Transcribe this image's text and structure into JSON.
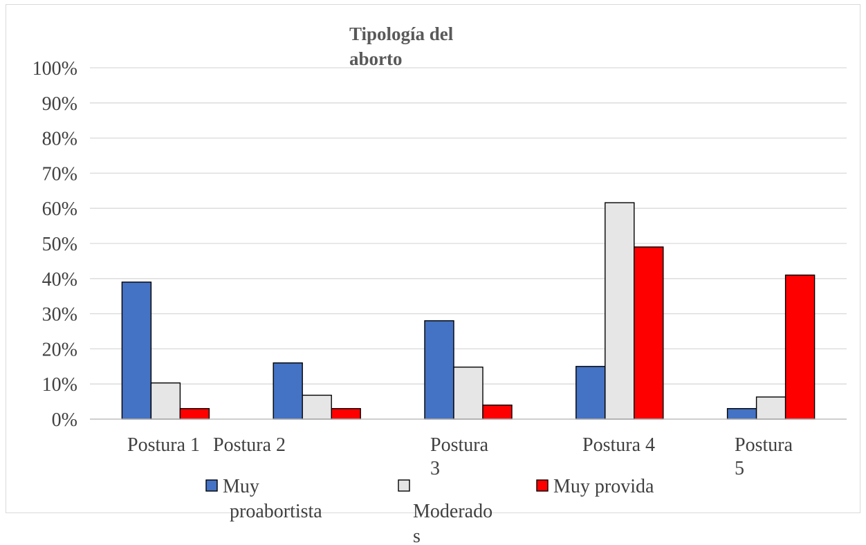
{
  "chart_data": {
    "type": "bar",
    "title_lines": [
      "Tipología del",
      "aborto"
    ],
    "categories": [
      [
        "Postura 1"
      ],
      [
        "Postura 2"
      ],
      [
        "Postura",
        "3"
      ],
      [
        "Postura 4"
      ],
      [
        "Postura",
        "5"
      ]
    ],
    "series": [
      {
        "name_lines": [
          "Muy",
          "proabortista"
        ],
        "color": "#4472c4",
        "values": [
          39,
          16,
          28,
          15,
          3
        ]
      },
      {
        "name_lines": [
          "",
          "Moderado",
          "s"
        ],
        "color": "#e7e6e6",
        "values": [
          10.3,
          6.8,
          14.8,
          61.6,
          6.3
        ]
      },
      {
        "name_lines": [
          "Muy provida"
        ],
        "color": "#ff0000",
        "values": [
          3,
          3,
          4,
          49,
          41
        ]
      }
    ],
    "ylim": [
      0,
      100
    ],
    "yticks": [
      "0%",
      "10%",
      "20%",
      "30%",
      "40%",
      "50%",
      "60%",
      "70%",
      "80%",
      "90%",
      "100%"
    ],
    "grid": true,
    "legend_position": "bottom"
  }
}
